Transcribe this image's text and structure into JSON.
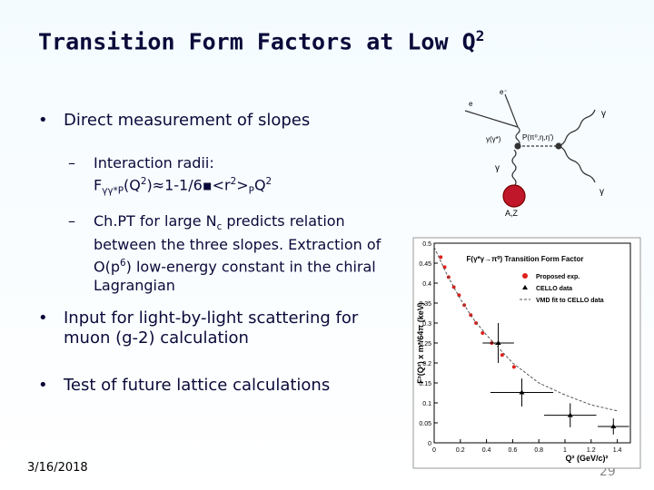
{
  "slide": {
    "title": [
      "Transition Form Factors at Low Q",
      "2"
    ],
    "bullets": [
      {
        "text": "Direct measurement of slopes",
        "subs": [
          {
            "lines": [
              [
                "Interaction radii:"
              ],
              [
                "F",
                "γγ*P",
                "(Q",
                "2",
                ")≈1-1/6▪<r",
                "2",
                ">",
                "P",
                "Q",
                "2"
              ]
            ]
          },
          {
            "lines": [
              [
                "Ch.PT for large N",
                "c",
                " predicts relation between the three slopes. Extraction of O(p",
                "6",
                ") low-energy constant in the chiral Lagrangian"
              ]
            ]
          }
        ]
      },
      {
        "text": "Input for light-by-light scattering for muon (g-2) calculation"
      },
      {
        "text": "Test of future lattice calculations"
      }
    ],
    "date": "3/16/2018",
    "page": "29"
  },
  "diagram": {
    "labels": [
      "e⁻",
      "e",
      "γ(γ*)",
      "P(π⁰,η,η')",
      "γ",
      "γ",
      "γ",
      "A,Z"
    ]
  },
  "chart_data": {
    "type": "scatter",
    "title": "F(γ*γ→π⁰) Transition Form Factor",
    "xlabel": "Q² (GeV/c)²",
    "ylabel": "F²(Q²) x m³/64π (keV)",
    "xlim": [
      0,
      1.5
    ],
    "ylim": [
      0,
      0.5
    ],
    "xticks": [
      0,
      0.2,
      0.4,
      0.6,
      0.8,
      1,
      1.2,
      1.4
    ],
    "yticks": [
      0,
      0.05,
      0.1,
      0.15,
      0.2,
      0.25,
      0.3,
      0.35,
      0.4,
      0.45,
      0.5
    ],
    "series": [
      {
        "name": "Proposed exp.",
        "color": "#e0201c",
        "marker": "circle",
        "x": [
          0.05,
          0.08,
          0.11,
          0.15,
          0.19,
          0.23,
          0.28,
          0.32,
          0.37,
          0.44,
          0.52,
          0.61
        ],
        "values": [
          0.465,
          0.44,
          0.415,
          0.39,
          0.37,
          0.345,
          0.32,
          0.3,
          0.275,
          0.25,
          0.22,
          0.19
        ]
      },
      {
        "name": "CELLO data",
        "color": "#000000",
        "marker": "triangle",
        "x": [
          0.49,
          0.67,
          1.04,
          1.37
        ],
        "values": [
          0.25,
          0.126,
          0.069,
          0.041
        ],
        "xerr": [
          0.12,
          0.24,
          0.2,
          0.12
        ],
        "yerr": [
          0.05,
          0.035,
          0.03,
          0.02
        ]
      },
      {
        "name": "VMD fit to CELLO data",
        "color": "#555555",
        "marker": "dashed",
        "x": [
          0,
          0.1,
          0.2,
          0.3,
          0.4,
          0.6,
          0.8,
          1,
          1.2,
          1.4
        ],
        "values": [
          0.49,
          0.42,
          0.36,
          0.31,
          0.27,
          0.2,
          0.15,
          0.12,
          0.095,
          0.08
        ]
      }
    ]
  }
}
